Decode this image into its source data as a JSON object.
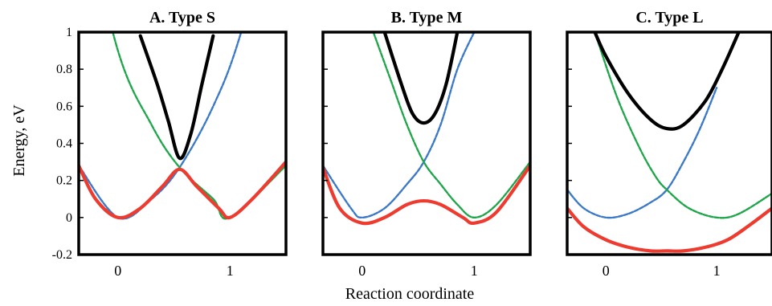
{
  "chart_data": {
    "type": "line",
    "xlabel": "Reaction coordinate",
    "ylabel": "Energy, eV",
    "ylim": [
      -0.2,
      1
    ],
    "yticks": [
      "1",
      "0.8",
      "0.6",
      "0.4",
      "0.2",
      "0",
      "-0.2"
    ],
    "xticks": [
      "0",
      "1"
    ],
    "grid": false,
    "colors": {
      "upper": "#000000",
      "lower": "#ee3b2f",
      "diabatic_reactant": "#3a78c8",
      "diabatic_product": "#1fa64a"
    },
    "panels": [
      {
        "title": "A. Type S",
        "xlim": [
          -0.35,
          1.5
        ],
        "xmin_upper": 0.3,
        "xmax_upper": 0.85,
        "series": [
          {
            "role": "diabatic_reactant",
            "style": "dashed",
            "x": [
              -0.35,
              0.0,
              0.3,
              0.55,
              0.85,
              1.1,
              1.5
            ],
            "y": [
              0.28,
              0.0,
              0.1,
              0.27,
              0.6,
              1.0,
              1.9
            ]
          },
          {
            "role": "diabatic_product",
            "style": "dashed",
            "x": [
              -0.35,
              0.0,
              0.3,
              0.55,
              0.85,
              1.0,
              1.5
            ],
            "y": [
              1.8,
              0.9,
              0.5,
              0.27,
              0.1,
              0.0,
              0.28
            ]
          },
          {
            "role": "upper",
            "style": "solid",
            "x": [
              0.2,
              0.35,
              0.45,
              0.55,
              0.65,
              0.75,
              0.85
            ],
            "y": [
              0.98,
              0.72,
              0.52,
              0.32,
              0.45,
              0.72,
              0.98
            ]
          },
          {
            "role": "lower",
            "style": "solid",
            "x": [
              -0.35,
              -0.2,
              0.0,
              0.2,
              0.4,
              0.55,
              0.7,
              0.9,
              1.0,
              1.2,
              1.5
            ],
            "y": [
              0.28,
              0.1,
              0.0,
              0.05,
              0.17,
              0.26,
              0.17,
              0.05,
              0.0,
              0.1,
              0.3
            ]
          }
        ]
      },
      {
        "title": "B. Type M",
        "xlim": [
          -0.35,
          1.5
        ],
        "series": [
          {
            "role": "diabatic_reactant",
            "style": "dashed",
            "x": [
              -0.35,
              -0.1,
              0.0,
              0.2,
              0.4,
              0.55,
              0.7,
              0.85,
              1.0
            ],
            "y": [
              0.28,
              0.05,
              0.0,
              0.05,
              0.18,
              0.3,
              0.5,
              0.8,
              1.0
            ]
          },
          {
            "role": "diabatic_product",
            "style": "dashed",
            "x": [
              0.1,
              0.25,
              0.4,
              0.55,
              0.7,
              0.85,
              1.0,
              1.2,
              1.5
            ],
            "y": [
              1.0,
              0.75,
              0.5,
              0.3,
              0.18,
              0.07,
              0.0,
              0.07,
              0.3
            ]
          },
          {
            "role": "upper",
            "style": "solid",
            "x": [
              0.2,
              0.35,
              0.45,
              0.55,
              0.65,
              0.75,
              0.85
            ],
            "y": [
              1.0,
              0.72,
              0.56,
              0.51,
              0.56,
              0.72,
              1.0
            ]
          },
          {
            "role": "lower",
            "style": "solid",
            "x": [
              -0.35,
              -0.2,
              0.0,
              0.2,
              0.4,
              0.55,
              0.7,
              0.9,
              1.0,
              1.2,
              1.5
            ],
            "y": [
              0.27,
              0.05,
              -0.03,
              0.0,
              0.07,
              0.09,
              0.07,
              0.0,
              -0.03,
              0.03,
              0.28
            ]
          }
        ]
      },
      {
        "title": "C. Type L",
        "xlim": [
          -0.35,
          1.5
        ],
        "series": [
          {
            "role": "diabatic_reactant",
            "style": "dashed",
            "x": [
              -0.35,
              -0.2,
              0.0,
              0.2,
              0.4,
              0.55,
              0.7,
              0.85,
              1.0
            ],
            "y": [
              0.15,
              0.05,
              0.0,
              0.02,
              0.08,
              0.15,
              0.3,
              0.48,
              0.7
            ]
          },
          {
            "role": "diabatic_product",
            "style": "dashed",
            "x": [
              -0.1,
              0.1,
              0.3,
              0.45,
              0.55,
              0.75,
              1.0,
              1.2,
              1.5
            ],
            "y": [
              1.0,
              0.65,
              0.38,
              0.22,
              0.15,
              0.05,
              0.0,
              0.02,
              0.13
            ]
          },
          {
            "role": "upper",
            "style": "solid",
            "x": [
              -0.1,
              0.0,
              0.2,
              0.4,
              0.55,
              0.7,
              0.9,
              1.05,
              1.2
            ],
            "y": [
              1.0,
              0.87,
              0.67,
              0.53,
              0.48,
              0.5,
              0.63,
              0.8,
              1.0
            ]
          },
          {
            "role": "lower",
            "style": "solid",
            "x": [
              -0.35,
              -0.2,
              0.0,
              0.2,
              0.4,
              0.55,
              0.7,
              0.9,
              1.1,
              1.3,
              1.5
            ],
            "y": [
              0.05,
              -0.05,
              -0.12,
              -0.16,
              -0.18,
              -0.18,
              -0.18,
              -0.16,
              -0.12,
              -0.04,
              0.05
            ]
          }
        ]
      }
    ]
  }
}
